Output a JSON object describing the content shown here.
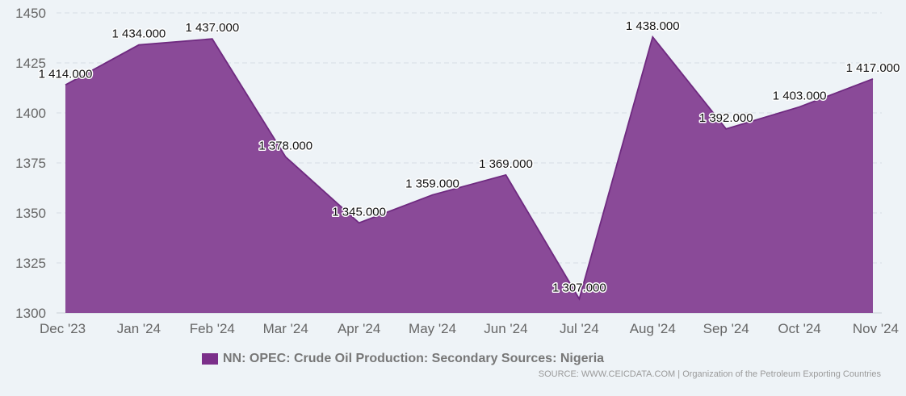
{
  "chart_data": {
    "type": "area",
    "categories": [
      "Dec '23",
      "Jan '24",
      "Feb '24",
      "Mar '24",
      "Apr '24",
      "May '24",
      "Jun '24",
      "Jul '24",
      "Aug '24",
      "Sep '24",
      "Oct '24",
      "Nov '24"
    ],
    "series": [
      {
        "name": "NN: OPEC: Crude Oil Production: Secondary Sources: Nigeria",
        "values": [
          1414,
          1434,
          1437,
          1378,
          1345,
          1359,
          1369,
          1307,
          1438,
          1392,
          1403,
          1417
        ],
        "labels": [
          "1 414.000",
          "1 434.000",
          "1 437.000",
          "1 378.000",
          "1 345.000",
          "1 359.000",
          "1 369.000",
          "1 307.000",
          "1 438.000",
          "1 392.000",
          "1 403.000",
          "1 417.000"
        ]
      }
    ],
    "y_ticks": [
      "1300",
      "1325",
      "1350",
      "1375",
      "1400",
      "1425",
      "1450"
    ],
    "ylim": [
      1300,
      1450
    ],
    "grid": true,
    "legend_position": "bottom-center",
    "colors": {
      "fill": "#8a4a98",
      "line": "#6f2a80",
      "swatch": "#7b2f8a"
    }
  },
  "legend": {
    "label": "NN: OPEC: Crude Oil Production: Secondary Sources: Nigeria"
  },
  "source": "SOURCE: WWW.CEICDATA.COM | Organization of the Petroleum Exporting Countries"
}
